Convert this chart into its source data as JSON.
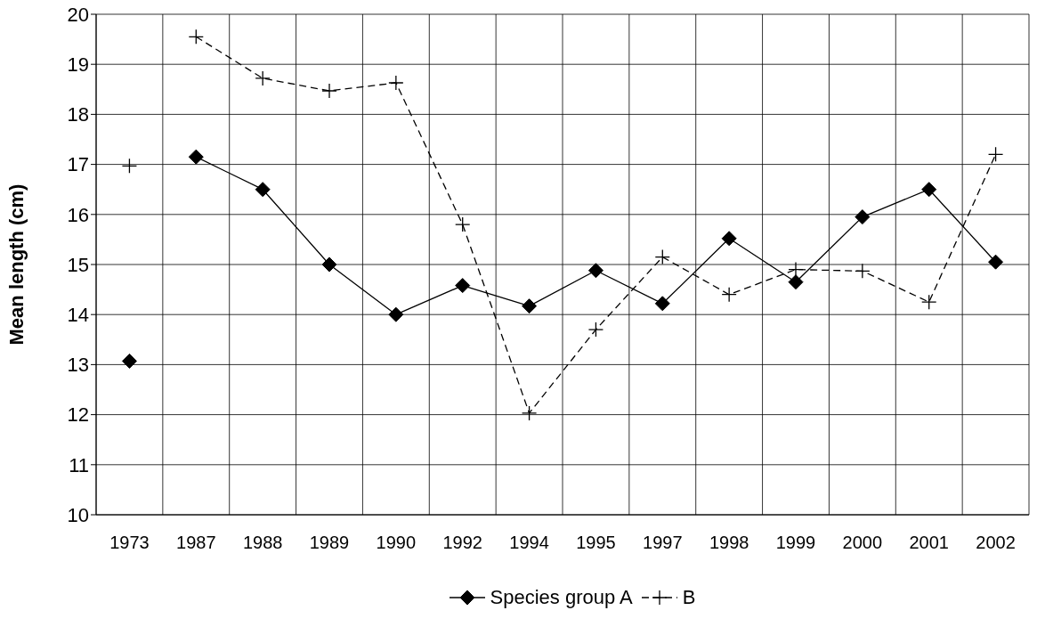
{
  "chart_data": {
    "type": "line",
    "ylabel": "Mean length (cm)",
    "categories": [
      "1973",
      "1987",
      "1988",
      "1989",
      "1990",
      "1992",
      "1994",
      "1995",
      "1997",
      "1998",
      "1999",
      "2000",
      "2001",
      "2002"
    ],
    "series": [
      {
        "name": "Species group A",
        "color": "#000000",
        "marker": "diamond",
        "line_style": "solid",
        "values": [
          null,
          17.15,
          16.5,
          15.0,
          14.0,
          14.58,
          14.17,
          14.88,
          14.22,
          15.52,
          14.65,
          15.95,
          16.5,
          15.05
        ]
      },
      {
        "name": "B",
        "color": "#000000",
        "marker": "cross",
        "line_style": "dashed",
        "values": [
          null,
          19.55,
          18.72,
          18.47,
          18.63,
          15.8,
          12.03,
          13.7,
          15.15,
          14.4,
          14.9,
          14.87,
          14.25,
          17.2
        ]
      },
      {
        "type": "scatter",
        "color": "#000000",
        "marker": "diamond",
        "values": [
          13.07,
          null,
          null,
          null,
          null,
          null,
          null,
          null,
          null,
          null,
          null,
          null,
          null,
          null
        ]
      },
      {
        "type": "scatter",
        "color": "#000000",
        "marker": "cross",
        "values": [
          16.97,
          null,
          null,
          null,
          null,
          null,
          null,
          null,
          null,
          null,
          null,
          null,
          null,
          null
        ]
      }
    ],
    "ylim": [
      10,
      20
    ],
    "yticks": [
      10,
      11,
      12,
      13,
      14,
      15,
      16,
      17,
      18,
      19,
      20
    ],
    "grid": true,
    "legend": "bottom"
  }
}
